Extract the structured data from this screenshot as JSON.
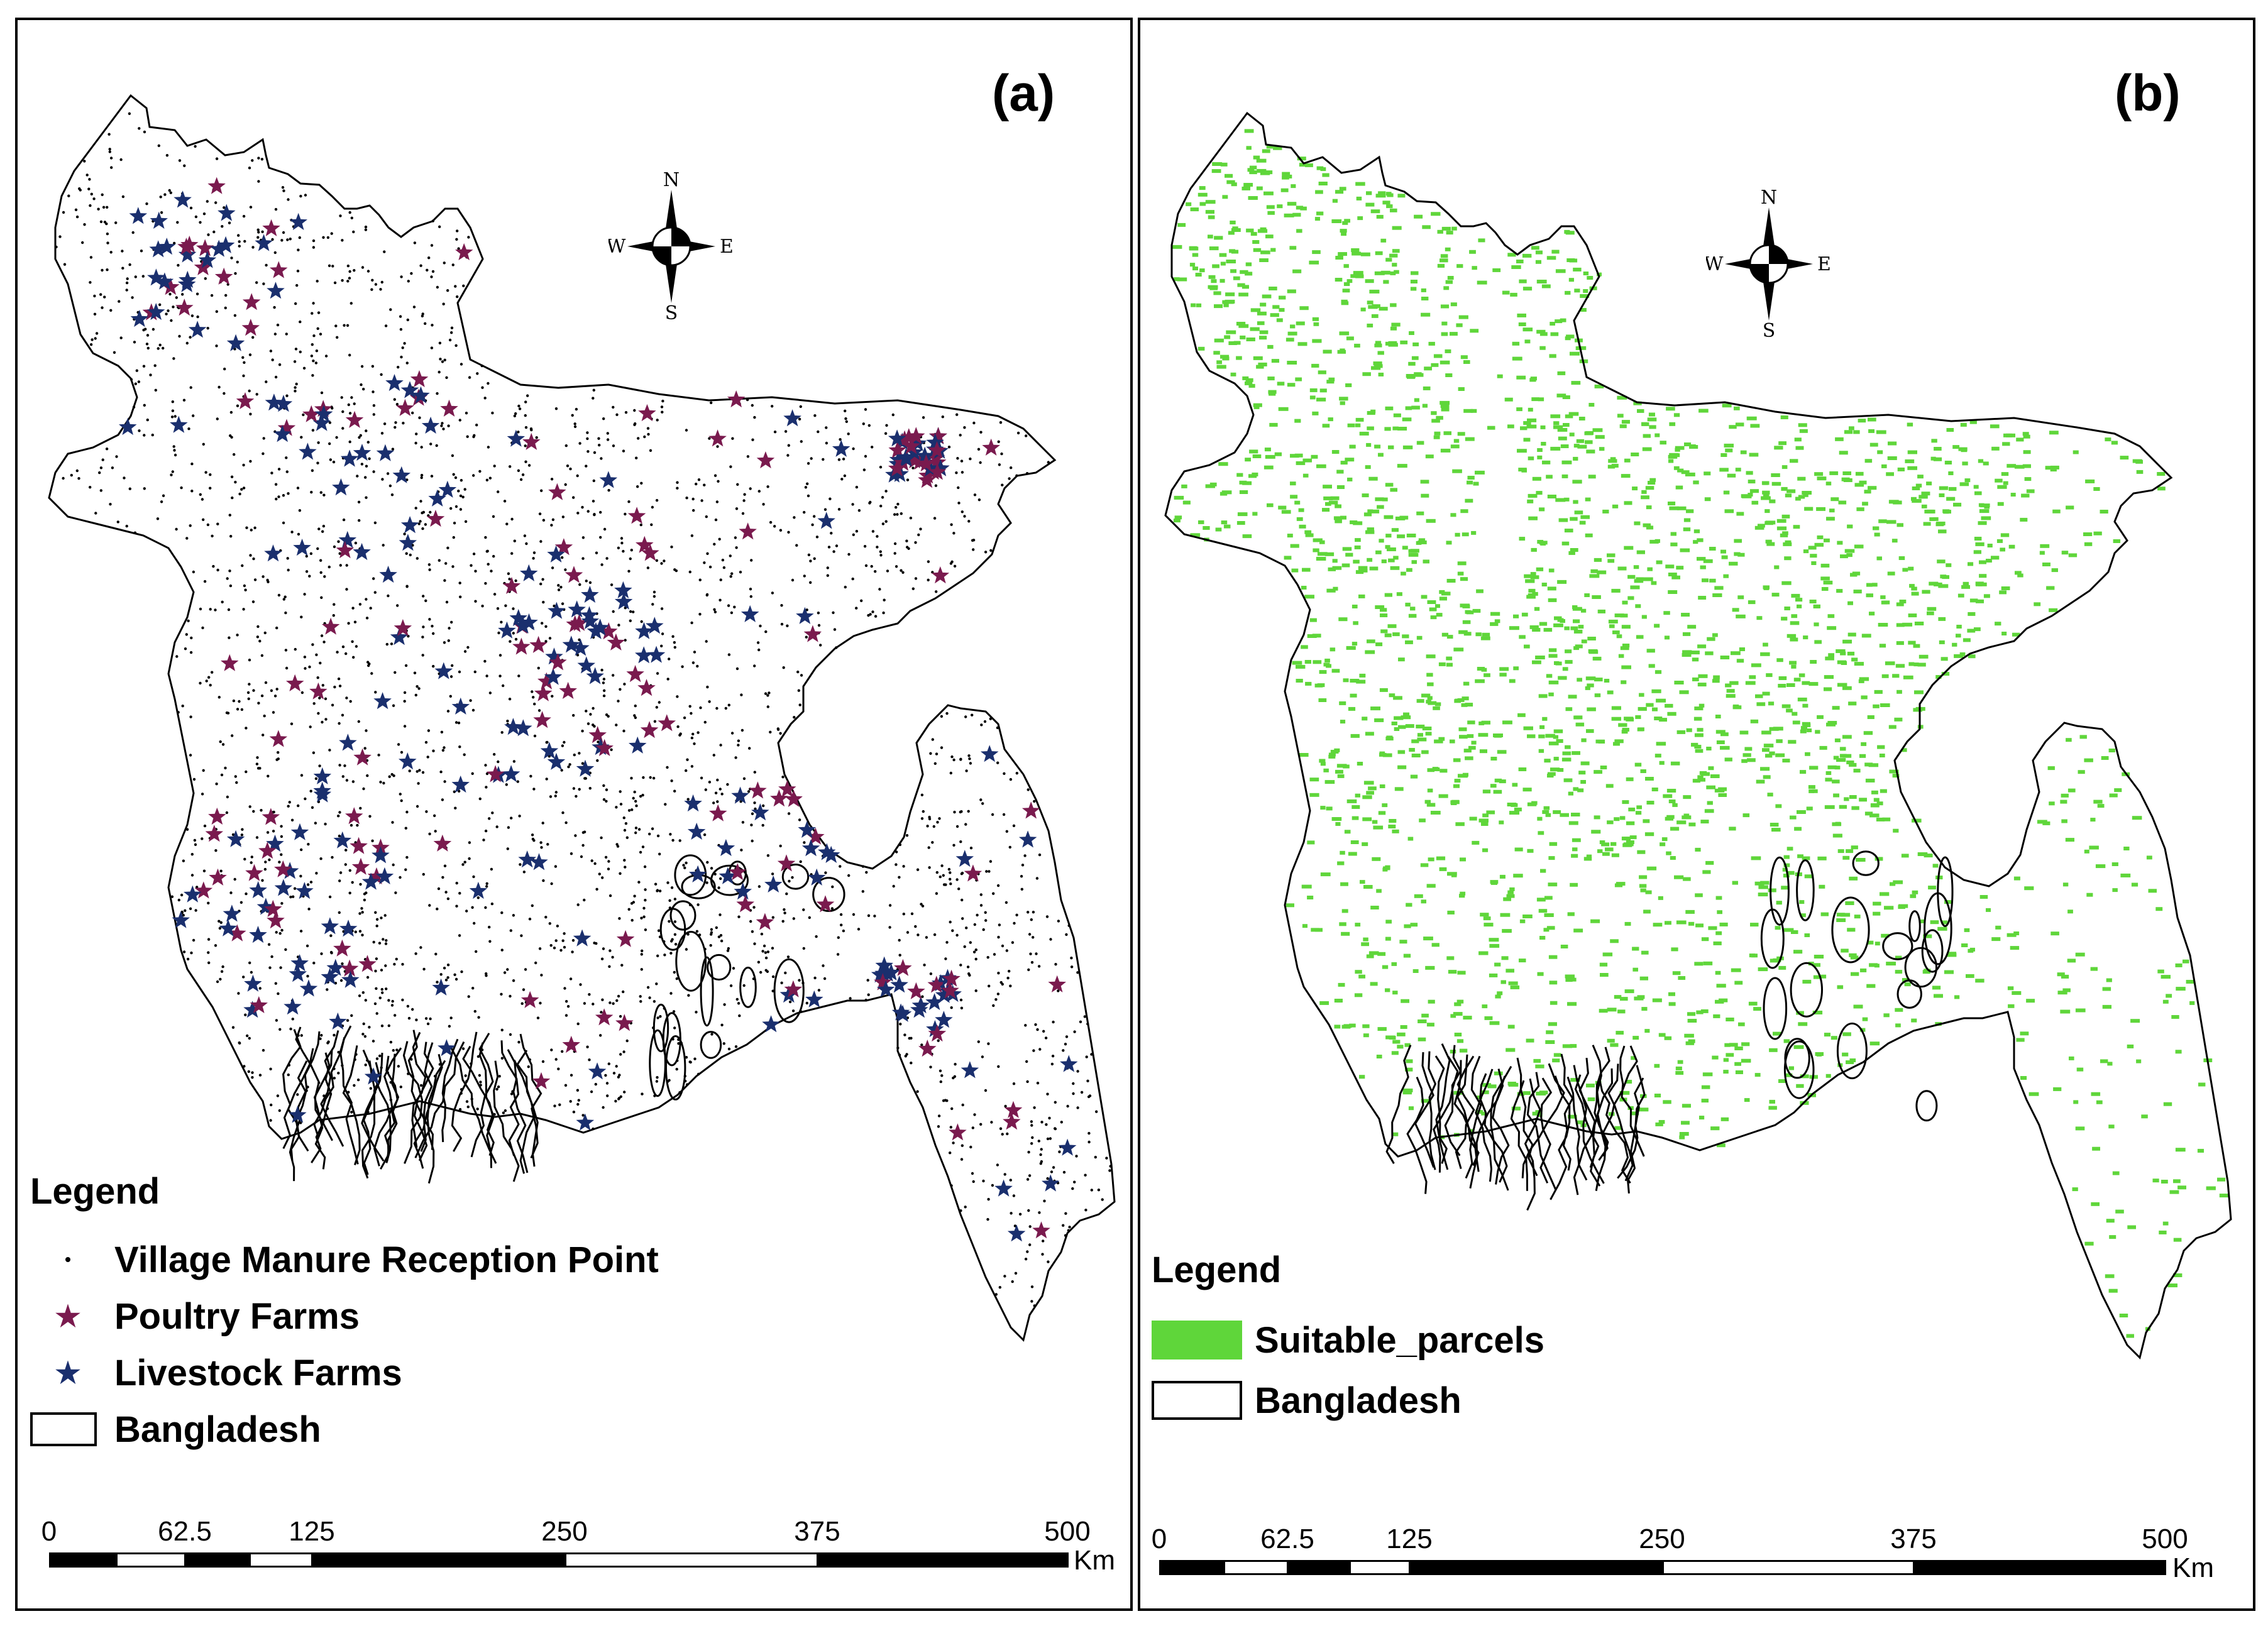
{
  "panels": [
    {
      "id": "a",
      "label": "(a)",
      "legend": {
        "title": "Legend",
        "items": [
          {
            "name": "Village Manure Reception Point",
            "symbol": "dot",
            "color": "#000000"
          },
          {
            "name": "Poultry Farms",
            "symbol": "star",
            "color": "#7a1a4e"
          },
          {
            "name": "Livestock Farms",
            "symbol": "star",
            "color": "#1a2f6e"
          },
          {
            "name": "Bangladesh",
            "symbol": "outline",
            "color": "#000000"
          }
        ]
      },
      "compass": {
        "n": "N",
        "s": "S",
        "e": "E",
        "w": "W"
      },
      "scale": {
        "ticks": [
          "0",
          "62.5",
          "125",
          "250",
          "375",
          "500"
        ],
        "unit": "Km"
      }
    },
    {
      "id": "b",
      "label": "(b)",
      "legend": {
        "title": "Legend",
        "items": [
          {
            "name": "Suitable_parcels",
            "symbol": "fill",
            "color": "#5fd63a"
          },
          {
            "name": "Bangladesh",
            "symbol": "outline",
            "color": "#000000"
          }
        ]
      },
      "compass": {
        "n": "N",
        "s": "S",
        "e": "E",
        "w": "W"
      },
      "scale": {
        "ticks": [
          "0",
          "62.5",
          "125",
          "250",
          "375",
          "500"
        ],
        "unit": "Km"
      }
    }
  ],
  "colors": {
    "poultry": "#7a1a4e",
    "livestock": "#1a2f6e",
    "suitable": "#5fd63a",
    "outline": "#000000"
  }
}
